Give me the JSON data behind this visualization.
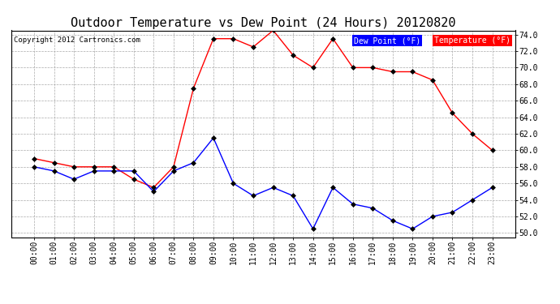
{
  "title": "Outdoor Temperature vs Dew Point (24 Hours) 20120820",
  "copyright": "Copyright 2012 Cartronics.com",
  "x_labels": [
    "00:00",
    "01:00",
    "02:00",
    "03:00",
    "04:00",
    "05:00",
    "06:00",
    "07:00",
    "08:00",
    "09:00",
    "10:00",
    "11:00",
    "12:00",
    "13:00",
    "14:00",
    "15:00",
    "16:00",
    "17:00",
    "18:00",
    "19:00",
    "20:00",
    "21:00",
    "22:00",
    "23:00"
  ],
  "temperature": [
    59.0,
    58.5,
    58.0,
    58.0,
    58.0,
    56.5,
    55.5,
    58.0,
    67.5,
    73.5,
    73.5,
    72.5,
    74.5,
    71.5,
    70.0,
    73.5,
    70.0,
    70.0,
    69.5,
    69.5,
    68.5,
    64.5,
    62.0,
    60.0
  ],
  "dew_point": [
    58.0,
    57.5,
    56.5,
    57.5,
    57.5,
    57.5,
    55.0,
    57.5,
    58.5,
    61.5,
    56.0,
    54.5,
    55.5,
    54.5,
    50.5,
    55.5,
    53.5,
    53.0,
    51.5,
    50.5,
    52.0,
    52.5,
    54.0,
    55.5
  ],
  "temp_color": "#ff0000",
  "dew_color": "#0000ff",
  "bg_color": "#ffffff",
  "grid_color": "#aaaaaa",
  "ylim_min": 49.5,
  "ylim_max": 74.5,
  "yticks": [
    50.0,
    52.0,
    54.0,
    56.0,
    58.0,
    60.0,
    62.0,
    64.0,
    66.0,
    68.0,
    70.0,
    72.0,
    74.0
  ],
  "legend_dew_bg": "#0000ff",
  "legend_temp_bg": "#ff0000",
  "legend_text_color": "#ffffff",
  "title_fontsize": 11,
  "tick_fontsize": 7,
  "marker": "D",
  "marker_size": 3,
  "marker_color": "#000000",
  "line_width": 1.0
}
